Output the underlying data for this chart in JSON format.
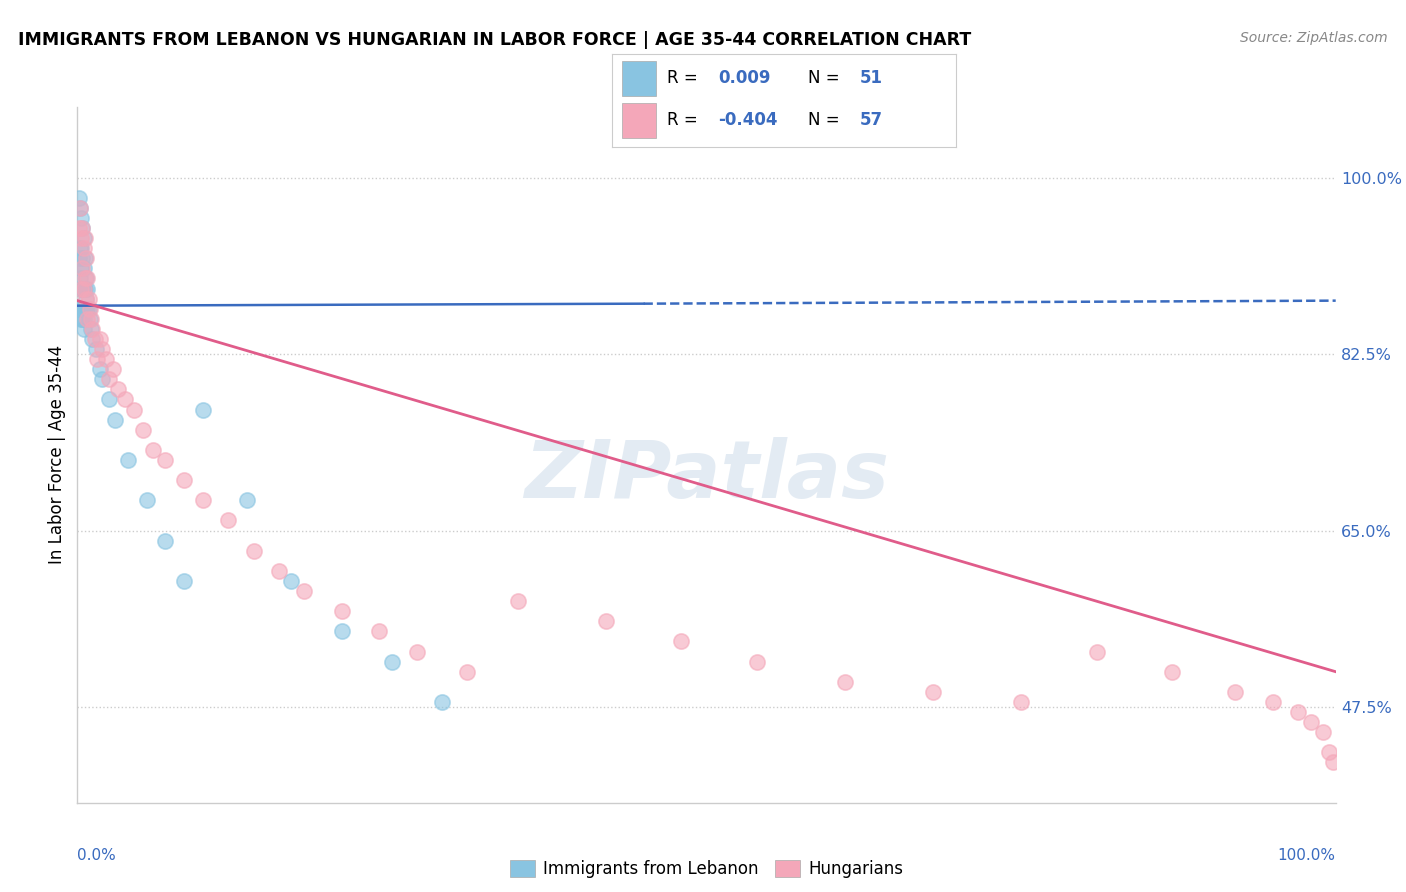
{
  "title": "IMMIGRANTS FROM LEBANON VS HUNGARIAN IN LABOR FORCE | AGE 35-44 CORRELATION CHART",
  "source": "Source: ZipAtlas.com",
  "ylabel": "In Labor Force | Age 35-44",
  "yaxis_ticks": [
    0.475,
    0.65,
    0.825,
    1.0
  ],
  "yaxis_labels": [
    "47.5%",
    "65.0%",
    "82.5%",
    "100.0%"
  ],
  "xaxis_range": [
    0.0,
    1.0
  ],
  "yaxis_range": [
    0.38,
    1.07
  ],
  "legend_blue_r": "0.009",
  "legend_blue_n": "51",
  "legend_pink_r": "-0.404",
  "legend_pink_n": "57",
  "blue_color": "#89c4e1",
  "blue_line_color": "#3a6bbf",
  "pink_color": "#f4a7b9",
  "pink_line_color": "#e05c8a",
  "watermark": "ZIPatlas",
  "legend_label_blue": "Immigrants from Lebanon",
  "legend_label_pink": "Hungarians",
  "blue_trend_start_y": 0.873,
  "blue_trend_end_y": 0.878,
  "pink_trend_start_y": 0.878,
  "pink_trend_end_y": 0.51,
  "blue_x": [
    0.001,
    0.001,
    0.001,
    0.002,
    0.002,
    0.002,
    0.002,
    0.003,
    0.003,
    0.003,
    0.003,
    0.003,
    0.003,
    0.004,
    0.004,
    0.004,
    0.004,
    0.004,
    0.005,
    0.005,
    0.005,
    0.005,
    0.005,
    0.005,
    0.006,
    0.006,
    0.006,
    0.007,
    0.007,
    0.007,
    0.008,
    0.008,
    0.009,
    0.01,
    0.011,
    0.012,
    0.015,
    0.018,
    0.02,
    0.025,
    0.03,
    0.04,
    0.055,
    0.07,
    0.085,
    0.1,
    0.135,
    0.17,
    0.21,
    0.25,
    0.29
  ],
  "blue_y": [
    0.98,
    0.92,
    0.87,
    0.97,
    0.93,
    0.9,
    0.87,
    0.96,
    0.93,
    0.91,
    0.89,
    0.87,
    0.86,
    0.95,
    0.92,
    0.89,
    0.87,
    0.86,
    0.94,
    0.91,
    0.89,
    0.87,
    0.86,
    0.85,
    0.92,
    0.89,
    0.87,
    0.9,
    0.88,
    0.87,
    0.89,
    0.87,
    0.87,
    0.86,
    0.85,
    0.84,
    0.83,
    0.81,
    0.8,
    0.78,
    0.76,
    0.72,
    0.68,
    0.64,
    0.6,
    0.77,
    0.68,
    0.6,
    0.55,
    0.52,
    0.48
  ],
  "pink_x": [
    0.001,
    0.002,
    0.003,
    0.003,
    0.004,
    0.004,
    0.005,
    0.005,
    0.006,
    0.006,
    0.007,
    0.007,
    0.008,
    0.008,
    0.009,
    0.01,
    0.011,
    0.012,
    0.014,
    0.016,
    0.018,
    0.02,
    0.023,
    0.025,
    0.028,
    0.032,
    0.038,
    0.045,
    0.052,
    0.06,
    0.07,
    0.085,
    0.1,
    0.12,
    0.14,
    0.16,
    0.18,
    0.21,
    0.24,
    0.27,
    0.31,
    0.35,
    0.42,
    0.48,
    0.54,
    0.61,
    0.68,
    0.75,
    0.81,
    0.87,
    0.92,
    0.95,
    0.97,
    0.98,
    0.99,
    0.995,
    0.998
  ],
  "pink_y": [
    0.95,
    0.97,
    0.94,
    0.89,
    0.95,
    0.91,
    0.93,
    0.89,
    0.94,
    0.9,
    0.92,
    0.88,
    0.9,
    0.86,
    0.88,
    0.87,
    0.86,
    0.85,
    0.84,
    0.82,
    0.84,
    0.83,
    0.82,
    0.8,
    0.81,
    0.79,
    0.78,
    0.77,
    0.75,
    0.73,
    0.72,
    0.7,
    0.68,
    0.66,
    0.63,
    0.61,
    0.59,
    0.57,
    0.55,
    0.53,
    0.51,
    0.58,
    0.56,
    0.54,
    0.52,
    0.5,
    0.49,
    0.48,
    0.53,
    0.51,
    0.49,
    0.48,
    0.47,
    0.46,
    0.45,
    0.43,
    0.42
  ]
}
